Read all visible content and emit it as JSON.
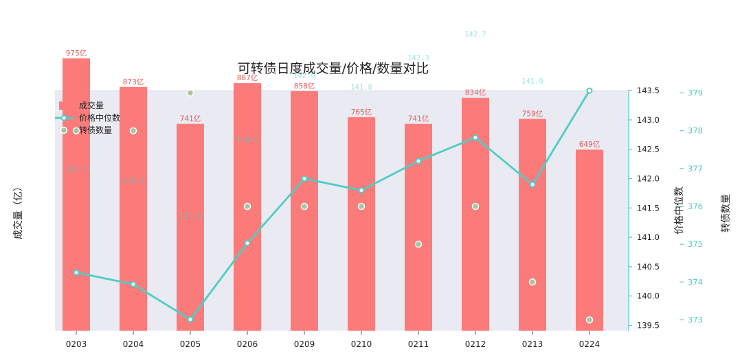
{
  "chart_data": {
    "type": "bar",
    "title": "可转债日度成交量/价格/数量对比",
    "categories": [
      "0203",
      "0204",
      "0205",
      "0206",
      "0209",
      "0210",
      "0211",
      "0212",
      "0213",
      "0224"
    ],
    "series": [
      {
        "name": "成交量",
        "type": "bar",
        "axis": "left",
        "values": [
          975,
          873,
          741,
          887,
          858,
          765,
          741,
          834,
          759,
          649
        ],
        "labels": [
          "975亿",
          "873亿",
          "741亿",
          "887亿",
          "858亿",
          "765亿",
          "741亿",
          "834亿",
          "759亿",
          "649亿"
        ],
        "color": "#fb7b7b"
      },
      {
        "name": "价格中位数",
        "type": "line",
        "axis": "right",
        "values": [
          140.4,
          140.2,
          139.6,
          140.9,
          142.0,
          141.8,
          142.3,
          142.7,
          141.9,
          143.5
        ],
        "labels": [
          "140.4",
          "140.2",
          "139.6",
          "140.9",
          "142.0",
          "141.8",
          "142.3",
          "142.7",
          "141.9",
          "143.5"
        ],
        "color": "#4ecdc4"
      },
      {
        "name": "转债数量",
        "type": "scatter",
        "axis": "right2",
        "values": [
          378,
          378,
          379,
          376,
          376,
          376,
          375,
          376,
          374,
          373
        ],
        "color": "#a8c4a0"
      }
    ],
    "xlabel": "",
    "ylabel": "成交量（亿）",
    "y2label": "价格中位数",
    "y3label": "转债数量",
    "ylim": [
      0,
      1000
    ],
    "y2lim": [
      139.4,
      143.7
    ],
    "y2ticks": [
      "139.5",
      "140.0",
      "140.5",
      "141.0",
      "141.5",
      "142.0",
      "142.5",
      "143.0",
      "143.5"
    ],
    "y3lim": [
      372.7,
      379.3
    ],
    "y3ticks": [
      "373",
      "374",
      "375",
      "376",
      "377",
      "378",
      "379"
    ],
    "legend": "top-left",
    "grid": false
  }
}
